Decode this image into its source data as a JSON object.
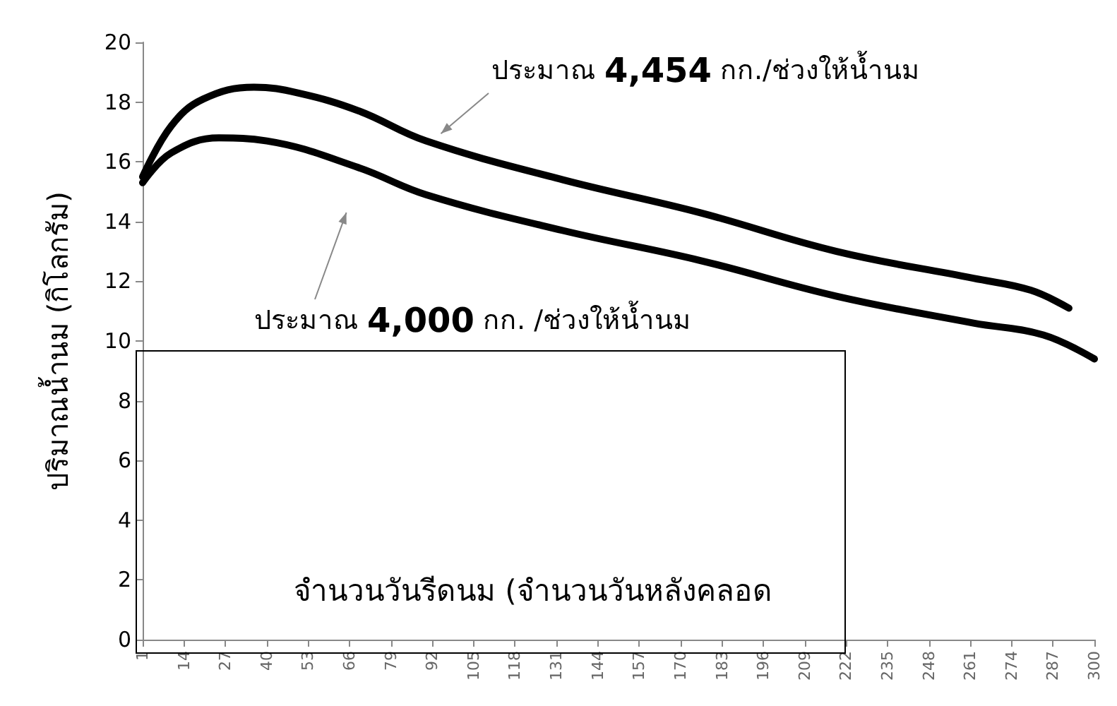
{
  "chart_data": {
    "type": "line",
    "ylabel": "ปริมาณน้ำนม (กิโลกรัม)",
    "xlabel": "จำนวนวันรีดนม (จำนวนวันหลังคลอด",
    "annotations": [
      {
        "text": "ประมาณ 4,454 กก./ช่วงให้น้ำนม",
        "x": 92,
        "y": 16.7
      },
      "ประมาณ 4,000 กก. /ช่วงให้น้ำนม"
    ],
    "series": [
      {
        "color": "#000000",
        "x": [
          1,
          10,
          20,
          36,
          50,
          69,
          90,
          133,
          176,
          219,
          262,
          280,
          292
        ],
        "values": [
          15.5,
          17.2,
          18.1,
          18.5,
          18.3,
          17.7,
          16.7,
          15.4,
          14.3,
          13.0,
          12.1,
          11.7,
          11.1
        ]
      },
      {
        "color": "#000000",
        "x": [
          1,
          10,
          25,
          40,
          69,
          90,
          133,
          176,
          219,
          262,
          284,
          300
        ],
        "values": [
          15.3,
          16.3,
          16.8,
          16.7,
          15.8,
          14.9,
          13.7,
          12.7,
          11.5,
          10.6,
          10.2,
          9.4
        ]
      }
    ],
    "xlim": [
      1,
      300
    ],
    "xticks": [
      1,
      14,
      27,
      40,
      53,
      66,
      79,
      92,
      105,
      118,
      131,
      144,
      157,
      170,
      183,
      196,
      209,
      222,
      235,
      248,
      261,
      274,
      287,
      300
    ],
    "ylim": [
      0,
      20
    ],
    "yticks": [
      0,
      2,
      4,
      6,
      8,
      10,
      12,
      14,
      16,
      18,
      20
    ],
    "grid": false,
    "marker": "none",
    "line_style": "solid"
  }
}
